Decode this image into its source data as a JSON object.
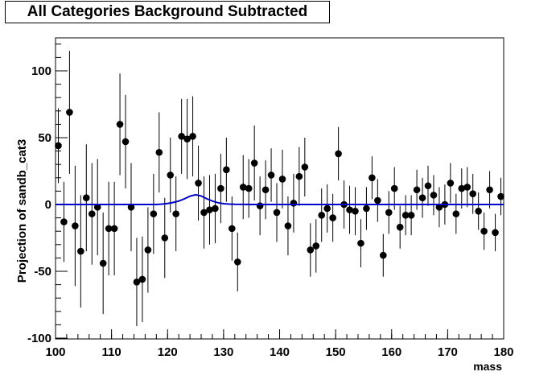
{
  "chart_data": {
    "type": "scatter",
    "title": "All Categories Background Subtracted",
    "xlabel": "mass",
    "ylabel": "Projection of sandb_cat3",
    "xlim": [
      100,
      180
    ],
    "ylim": [
      -100,
      125
    ],
    "xticks": [
      100,
      110,
      120,
      130,
      140,
      150,
      160,
      170,
      180
    ],
    "yticks": [
      -100,
      -50,
      0,
      50,
      100
    ],
    "grid": false,
    "colors": {
      "points": "#000000",
      "curve": "#0000c8"
    },
    "series": [
      {
        "type": "errorbar",
        "x": [
          100.5,
          101.5,
          102.5,
          103.5,
          104.5,
          105.5,
          106.5,
          107.5,
          108.5,
          109.5,
          110.5,
          111.5,
          112.5,
          113.5,
          114.5,
          115.5,
          116.5,
          117.5,
          118.5,
          119.5,
          120.5,
          121.5,
          122.5,
          123.5,
          124.5,
          125.5,
          126.5,
          127.5,
          128.5,
          129.5,
          130.5,
          131.5,
          132.5,
          133.5,
          134.5,
          135.5,
          136.5,
          137.5,
          138.5,
          139.5,
          140.5,
          141.5,
          142.5,
          143.5,
          144.5,
          145.5,
          146.5,
          147.5,
          148.5,
          149.5,
          150.5,
          151.5,
          152.5,
          153.5,
          154.5,
          155.5,
          156.5,
          157.5,
          158.5,
          159.5,
          160.5,
          161.5,
          162.5,
          163.5,
          164.5,
          165.5,
          166.5,
          167.5,
          168.5,
          169.5,
          170.5,
          171.5,
          172.5,
          173.5,
          174.5,
          175.5,
          176.5,
          177.5,
          178.5,
          179.5
        ],
        "y": [
          44,
          -13,
          69,
          -16,
          -35,
          5,
          -7,
          -2,
          -44,
          -18,
          -18,
          60,
          47,
          -2,
          -58,
          -56,
          -34,
          -7,
          39,
          -25,
          22,
          -7,
          51,
          49,
          51,
          16,
          -6,
          -4,
          -3,
          12,
          26,
          -18,
          -43,
          13,
          12,
          31,
          -1,
          11,
          22,
          -6,
          19,
          -16,
          1,
          21,
          28,
          -34,
          -31,
          -8,
          -3,
          -10,
          38,
          0,
          -4,
          -5,
          -29,
          -3,
          20,
          3,
          -38,
          -6,
          12,
          -17,
          -8,
          -8,
          11,
          5,
          14,
          7,
          -2,
          0,
          16,
          -7,
          12,
          13,
          8,
          -5,
          -20,
          11,
          -21,
          6
        ],
        "err": [
          28,
          30,
          46,
          45,
          42,
          40,
          38,
          36,
          38,
          35,
          35,
          38,
          35,
          33,
          33,
          32,
          32,
          30,
          30,
          30,
          28,
          28,
          28,
          30,
          30,
          28,
          27,
          26,
          26,
          26,
          24,
          24,
          22,
          24,
          22,
          28,
          22,
          22,
          20,
          22,
          22,
          22,
          22,
          22,
          22,
          20,
          20,
          20,
          18,
          18,
          20,
          18,
          18,
          18,
          18,
          16,
          16,
          16,
          16,
          16,
          16,
          16,
          15,
          15,
          15,
          15,
          15,
          15,
          15,
          15,
          15,
          15,
          15,
          15,
          15,
          14,
          14,
          14,
          14,
          14
        ]
      },
      {
        "type": "line",
        "x": [
          100,
          118,
          119,
          120,
          121,
          122,
          123,
          124,
          125,
          126,
          127,
          128,
          129,
          130,
          131,
          132,
          135,
          140,
          180
        ],
        "y": [
          0,
          0,
          0.3,
          0.8,
          1.5,
          2.6,
          4.2,
          6.2,
          7.3,
          6.4,
          4.3,
          2.6,
          1.3,
          0.6,
          0.3,
          0.1,
          0,
          0,
          0
        ]
      }
    ]
  }
}
